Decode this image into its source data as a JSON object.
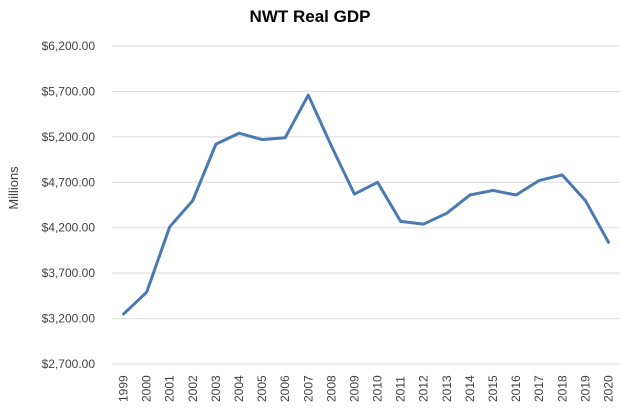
{
  "chart_data": {
    "type": "line",
    "title": "NWT Real GDP",
    "ylabel": "Millions",
    "xlabel": "",
    "x": [
      "1999",
      "2000",
      "2001",
      "2002",
      "2003",
      "2004",
      "2005",
      "2006",
      "2007",
      "2008",
      "2009",
      "2010",
      "2011",
      "2012",
      "2013",
      "2014",
      "2015",
      "2016",
      "2017",
      "2018",
      "2019",
      "2020"
    ],
    "y_tick_values": [
      2700,
      3200,
      3700,
      4200,
      4700,
      5200,
      5700,
      6200
    ],
    "y_tick_labels": [
      "$2,700.00",
      "$3,200.00",
      "$3,700.00",
      "$4,200.00",
      "$4,700.00",
      "$5,200.00",
      "$5,700.00",
      "$6,200.00"
    ],
    "ylim": [
      2700,
      6200
    ],
    "grid": true,
    "legend": "none",
    "series": [
      {
        "color": "#4a7ab0",
        "values": [
          3250,
          3490,
          4210,
          4500,
          5120,
          5240,
          5170,
          5190,
          5660,
          5100,
          4570,
          4700,
          4270,
          4240,
          4360,
          4560,
          4610,
          4560,
          4720,
          4780,
          4500,
          4040
        ]
      }
    ]
  }
}
